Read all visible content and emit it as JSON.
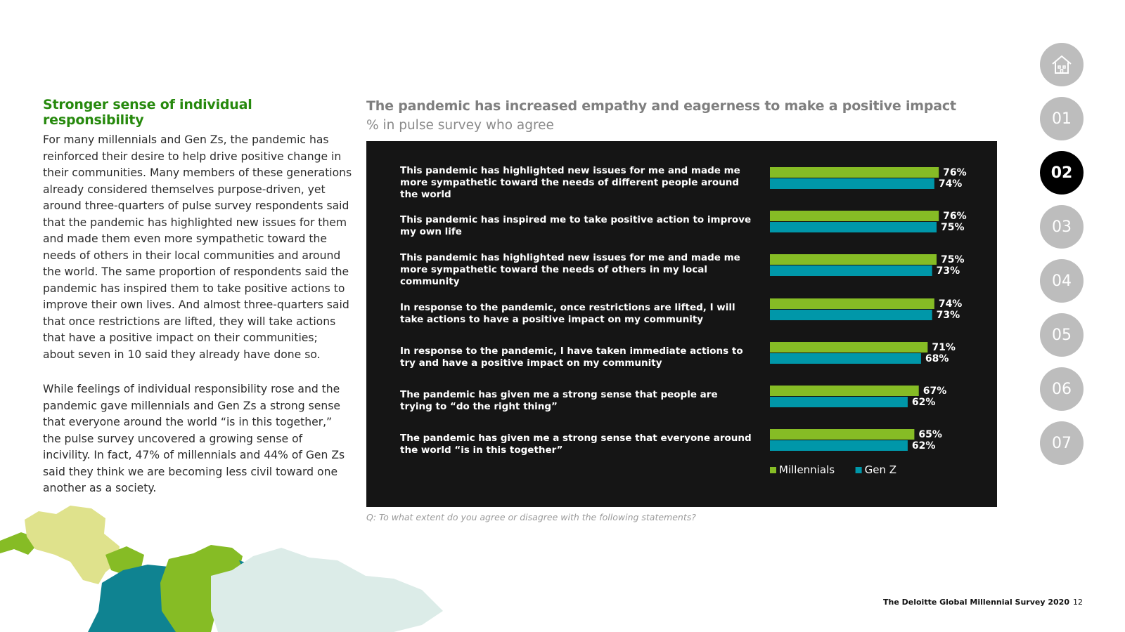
{
  "section": {
    "heading": "Stronger sense of individual responsibility",
    "paragraphs": [
      "For many millennials and Gen Zs, the pandemic has reinforced their desire to help drive positive change in their communities. Many members of these generations already considered themselves purpose-driven, yet around three-quarters of pulse survey respondents said that the pandemic has highlighted new issues for them and made them even more sympathetic toward the needs of others in their local communities and around the world. The same proportion of respondents said the pandemic has inspired them to take positive actions to improve their own lives. And almost three-quarters said that once restrictions are lifted, they will take actions that have a positive impact on their communities; about seven in 10 said they already have done so.",
      "While feelings of individual responsibility rose and the pandemic gave millennials and Gen Zs a strong sense that everyone around the world “is in this together,” the pulse survey uncovered a growing sense of incivility. In fact, 47% of millennials and 44% of Gen Zs said they think we are becoming less civil toward one another as a society."
    ]
  },
  "chart_data": {
    "type": "bar",
    "orientation": "horizontal",
    "title": "The pandemic has increased empathy and eagerness to make a positive impact",
    "subtitle": "% in pulse survey who agree",
    "categories": [
      "This pandemic has highlighted new issues for me and made me more sympathetic toward the needs of different people around the world",
      "This pandemic has inspired me to take positive action to improve my own life",
      "This pandemic has highlighted new issues for me and made me more sympathetic toward the needs of others in my local community",
      "In response to the pandemic, once restrictions are lifted, I will take actions to have a positive impact on my community",
      "In response to the pandemic, I have taken immediate actions to try and have a positive impact on my community",
      "The pandemic has given me a strong sense that people are trying to “do the right thing”",
      "The pandemic has given me a strong sense that everyone around the world “is in this together”"
    ],
    "series": [
      {
        "name": "Millennials",
        "color": "#86bc25",
        "values": [
          76,
          76,
          75,
          74,
          71,
          67,
          65
        ]
      },
      {
        "name": "Gen Z",
        "color": "#0097a9",
        "values": [
          74,
          75,
          73,
          73,
          68,
          62,
          62
        ]
      }
    ],
    "value_suffix": "%",
    "xlim": [
      0,
      100
    ],
    "grid": false,
    "legend_position": "bottom"
  },
  "question_note": "Q: To what extent do you agree or disagree with the following statements?",
  "footer": {
    "title": "The Deloitte Global Millennial Survey 2020",
    "page": "12"
  },
  "nav": {
    "items": [
      "01",
      "02",
      "03",
      "04",
      "05",
      "06",
      "07"
    ],
    "active": "02",
    "home_icon": "home-icon"
  }
}
